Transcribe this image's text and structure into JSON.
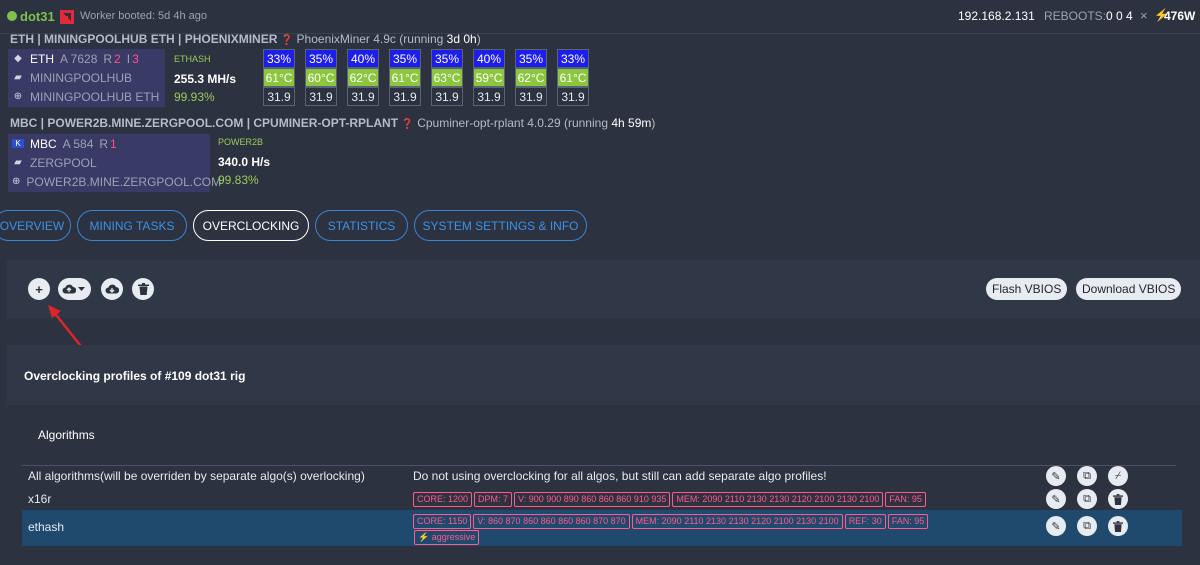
{
  "header": {
    "rig_name": "dot31",
    "worker_status": "Worker booted: 5d 4h ago",
    "ip": "192.168.2.131",
    "reboots_label": "REBOOTS:",
    "reboots_value": "0 0 4",
    "close_symbol": "×",
    "power": "476W"
  },
  "miners": [
    {
      "title": "ETH | MININGPOOLHUB ETH | PHOENIXMINER",
      "miner_name": "PhoenixMiner 4.9c",
      "running_prefix": "(running ",
      "running_time": "3d 0h",
      "running_suffix": ")",
      "coin": "ETH",
      "accepted": "A 7628",
      "rejected_label": "R",
      "rejected": "2",
      "invalid_label": "I",
      "invalid": "3",
      "pool": "MININGPOOLHUB",
      "pool_url": "MININGPOOLHUB ETH",
      "algo": "ETHASH",
      "hashrate": "255.3 MH/s",
      "efficiency": "99.93%",
      "gpus": [
        {
          "fan": "33%",
          "temp": "61°C",
          "power": "31.9"
        },
        {
          "fan": "35%",
          "temp": "60°C",
          "power": "31.9"
        },
        {
          "fan": "40%",
          "temp": "62°C",
          "power": "31.9"
        },
        {
          "fan": "35%",
          "temp": "61°C",
          "power": "31.9"
        },
        {
          "fan": "35%",
          "temp": "63°C",
          "power": "31.9"
        },
        {
          "fan": "40%",
          "temp": "59°C",
          "power": "31.9"
        },
        {
          "fan": "35%",
          "temp": "62°C",
          "power": "31.9"
        },
        {
          "fan": "33%",
          "temp": "61°C",
          "power": "31.9"
        }
      ]
    },
    {
      "title": "MBC | POWER2B.MINE.ZERGPOOL.COM | CPUMINER-OPT-RPLANT",
      "miner_name": "Cpuminer-opt-rplant 4.0.29",
      "running_prefix": "(running ",
      "running_time": "4h 59m",
      "running_suffix": ")",
      "coin": "MBC",
      "accepted": "A 584",
      "rejected_label": "R",
      "rejected": "1",
      "pool": "ZERGPOOL",
      "pool_url": "POWER2B.MINE.ZERGPOOL.COM",
      "algo": "POWER2B",
      "hashrate": "340.0 H/s",
      "efficiency": "99.83%"
    }
  ],
  "tabs": [
    "OVERVIEW",
    "MINING TASKS",
    "OVERCLOCKING",
    "STATISTICS",
    "SYSTEM SETTINGS & INFO"
  ],
  "active_tab": "OVERCLOCKING",
  "toolbar": {
    "add_symbol": "+",
    "flash_label": "Flash VBIOS",
    "download_label": "Download VBIOS"
  },
  "profiles": {
    "heading": "Overclocking profiles of #109 dot31 rig",
    "algorithms_label": "Algorithms",
    "rows": [
      {
        "name": "All algorithms(will be overriden by separate algo(s) overlocking)",
        "description": "Do not using overclocking for all algos, but still can add separate algo profiles!",
        "tags": []
      },
      {
        "name": "x16r",
        "description": "",
        "tags": [
          "CORE: 1200",
          "DPM: 7",
          "V: 900 900 890 860 860 860 910 935",
          "MEM: 2090 2110 2130 2130 2120 2100 2130 2100",
          "FAN: 95"
        ]
      },
      {
        "name": "ethash",
        "description": "",
        "tags": [
          "CORE: 1150",
          "V: 860 870 860 860 860 860 870 870",
          "MEM: 2090 2110 2130 2130 2120 2100 2130 2100",
          "REF: 30",
          "FAN: 95"
        ],
        "extra_tag": "⚡ aggressive"
      }
    ]
  },
  "colors": {
    "background": "#2c3240",
    "accent": "#3e91e6",
    "fan_cell": "#1d1ee8",
    "temp_cell": "#8cc63f",
    "tag": "#ff5a8a",
    "arrow": "#e0242b"
  }
}
